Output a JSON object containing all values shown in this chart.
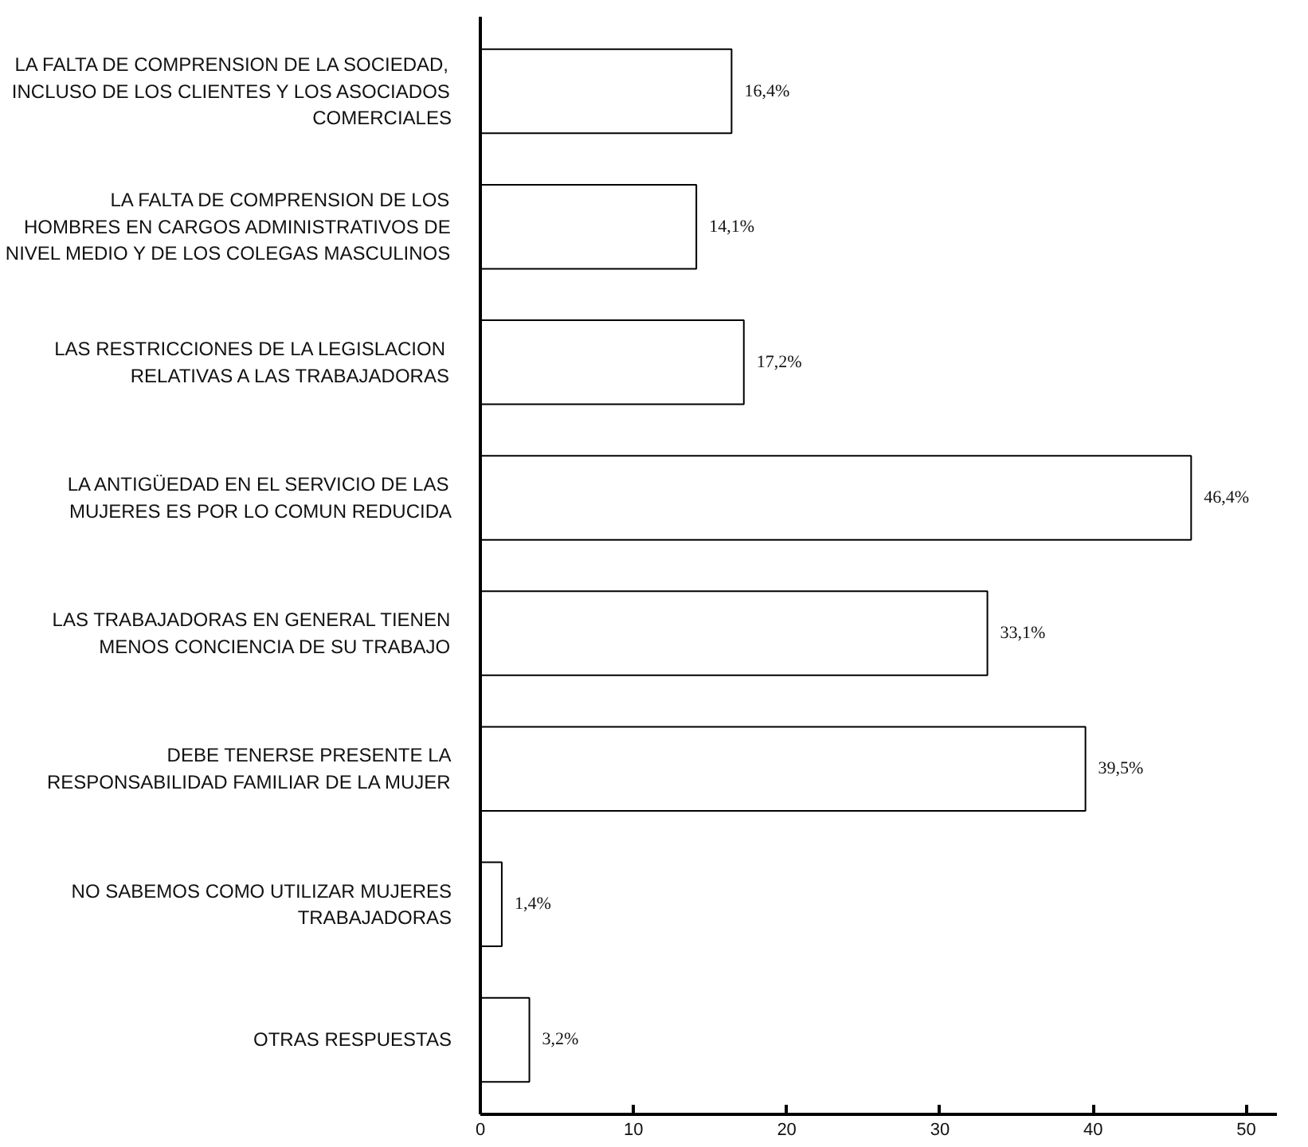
{
  "chart_data": {
    "type": "bar",
    "orientation": "horizontal",
    "categories": [
      "LA FALTA DE COMPRENSION DE LA SOCIEDAD,\nINCLUSO DE LOS CLIENTES Y LOS ASOCIADOS\nCOMERCIALES",
      "LA FALTA DE COMPRENSION DE LOS\nHOMBRES EN CARGOS ADMINISTRATIVOS DE\nNIVEL MEDIO Y DE LOS COLEGAS MASCULINOS",
      "LAS  RESTRICCIONES DE LA LEGISLACION\nRELATIVAS A LAS TRABAJADORAS",
      "LA ANTIGÜEDAD EN EL SERVICIO DE LAS\nMUJERES ES POR LO COMUN REDUCIDA",
      "LAS TRABAJADORAS EN GENERAL TIENEN\nMENOS CONCIENCIA DE SU TRABAJO",
      "DEBE TENERSE PRESENTE LA\nRESPONSABILIDAD FAMILIAR DE LA MUJER",
      "NO SABEMOS COMO UTILIZAR MUJERES\nTRABAJADORAS",
      "OTRAS RESPUESTAS"
    ],
    "values": [
      16.4,
      14.1,
      17.2,
      46.4,
      33.1,
      39.5,
      1.4,
      3.2
    ],
    "value_labels": [
      "16,4%",
      "14,1%",
      "17,2%",
      "46,4%",
      "33,1%",
      "39,5%",
      "1,4%",
      "3,2%"
    ],
    "color": "#ffffff",
    "xlim": [
      0,
      52
    ],
    "xticks": [
      0,
      10,
      20,
      30,
      40,
      50
    ],
    "tick_labels": "x",
    "grid": false
  }
}
